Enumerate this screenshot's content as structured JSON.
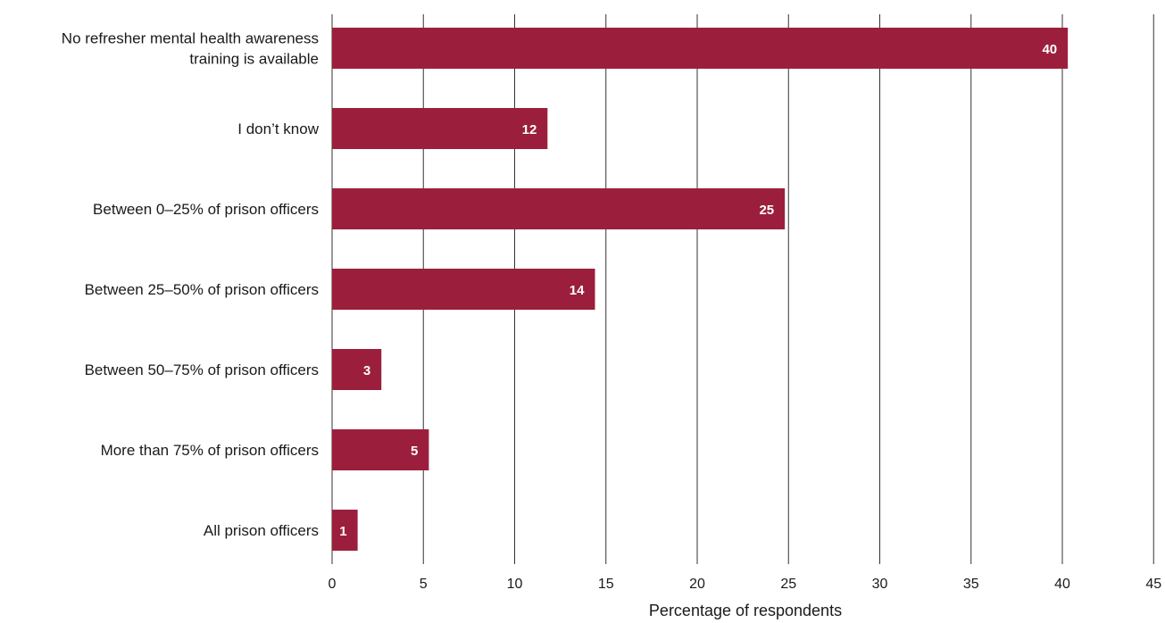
{
  "chart_data": {
    "type": "bar",
    "orientation": "horizontal",
    "categories": [
      [
        "No refresher mental health awareness",
        "training is available"
      ],
      [
        "I don’t know"
      ],
      [
        "Between 0–25% of prison officers"
      ],
      [
        "Between 25–50% of prison officers"
      ],
      [
        "Between 50–75% of prison officers"
      ],
      [
        "More than 75% of prison officers"
      ],
      [
        "All prison officers"
      ]
    ],
    "values": [
      40.3,
      11.8,
      24.8,
      14.4,
      2.7,
      5.3,
      1.4
    ],
    "data_labels": [
      "40",
      "12",
      "25",
      "14",
      "3",
      "5",
      "1"
    ],
    "xlabel": "Percentage of respondents",
    "ylabel": "",
    "xlim": [
      0,
      45
    ],
    "xticks": [
      0,
      5,
      10,
      15,
      20,
      25,
      30,
      35,
      40,
      45
    ],
    "grid": true,
    "bar_color": "#9b1f3c"
  }
}
